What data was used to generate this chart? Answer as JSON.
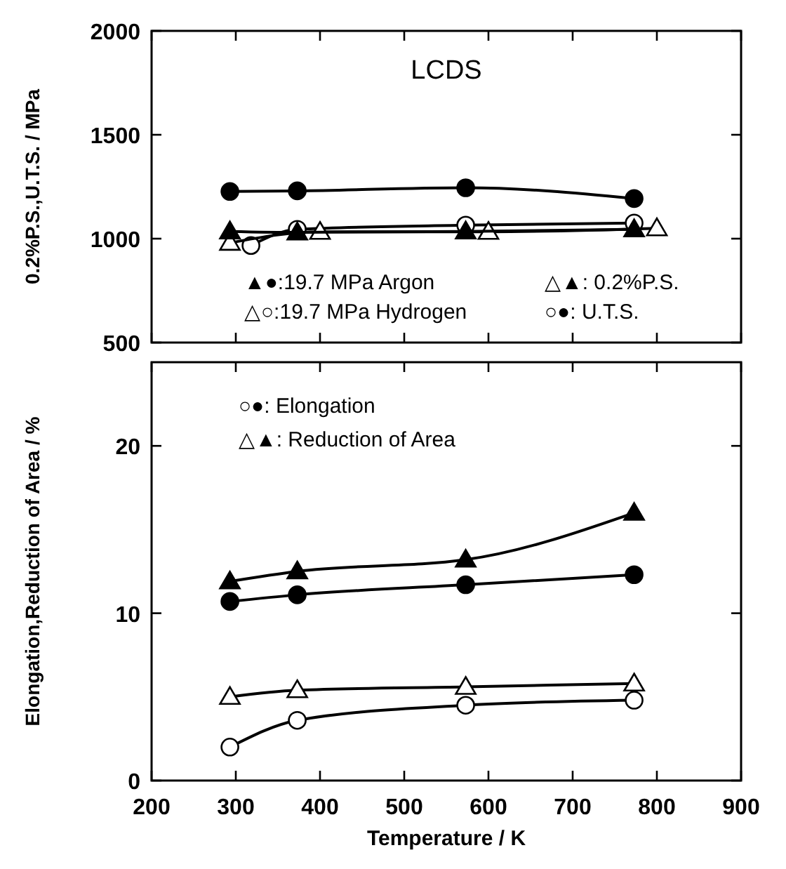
{
  "chart_data": [
    {
      "type": "line",
      "title": "LCDS",
      "ylabel": "0.2%P.S.,U.T.S. / MPa",
      "xlim": [
        200,
        900
      ],
      "xticks": [
        200,
        300,
        400,
        500,
        600,
        700,
        800,
        900
      ],
      "ylim": [
        500,
        2000
      ],
      "yticks": [
        500,
        1000,
        1500,
        2000
      ],
      "tick_labels": "y",
      "grid": false,
      "line_style": "solid",
      "annotations": [
        "▲●:19.7 MPa Argon",
        "△▲: 0.2%P.S.",
        "△○:19.7 MPa Hydrogen",
        "○●: U.T.S."
      ],
      "series": [
        {
          "color": "#000000",
          "marker": "circle",
          "x": [
            293,
            373,
            573,
            773
          ],
          "values": [
            1227,
            1230,
            1245,
            1193
          ]
        },
        {
          "color": "#000000",
          "marker": "triangle",
          "x": [
            293,
            373,
            573,
            773
          ],
          "values": [
            1035,
            1030,
            1035,
            1045
          ]
        },
        {
          "color": "#ffffff",
          "marker": "triangle",
          "x": [
            293,
            400,
            600,
            800
          ],
          "values": [
            980,
            1033,
            1033,
            1050
          ]
        },
        {
          "color": "#ffffff",
          "marker": "circle",
          "x": [
            318,
            373,
            573,
            773
          ],
          "values": [
            967,
            1045,
            1065,
            1075
          ]
        }
      ]
    },
    {
      "type": "line",
      "xlabel": "Temperature / K",
      "ylabel": "Elongation,Reduction of Area / %",
      "xlim": [
        200,
        900
      ],
      "xticks": [
        200,
        300,
        400,
        500,
        600,
        700,
        800,
        900
      ],
      "ylim": [
        0,
        25
      ],
      "yticks": [
        0,
        10,
        20
      ],
      "grid": false,
      "line_style": "solid",
      "annotations": [
        "○●: Elongation",
        "△▲: Reduction of Area"
      ],
      "series": [
        {
          "color": "#000000",
          "marker": "triangle",
          "x": [
            293,
            373,
            573,
            773
          ],
          "values": [
            11.9,
            12.5,
            13.2,
            16.0
          ]
        },
        {
          "color": "#000000",
          "marker": "circle",
          "x": [
            293,
            373,
            573,
            773
          ],
          "values": [
            10.7,
            11.1,
            11.7,
            12.3
          ]
        },
        {
          "color": "#ffffff",
          "marker": "triangle",
          "x": [
            293,
            373,
            573,
            773
          ],
          "values": [
            5.0,
            5.4,
            5.6,
            5.8
          ]
        },
        {
          "color": "#ffffff",
          "marker": "circle",
          "x": [
            293,
            373,
            573,
            773
          ],
          "values": [
            2.0,
            3.6,
            4.5,
            4.8
          ]
        }
      ]
    }
  ]
}
